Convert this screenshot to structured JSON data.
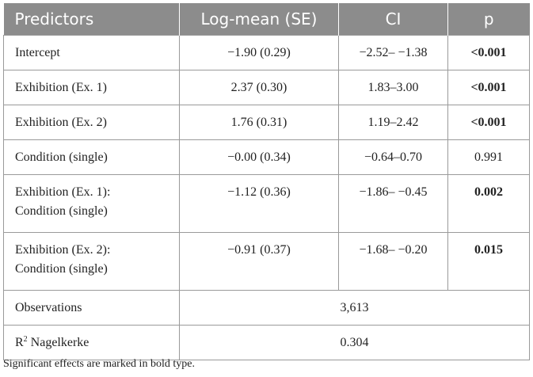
{
  "header": {
    "col1": "Predictors",
    "col2": "Log-mean (SE)",
    "col3": "CI",
    "col4": "p"
  },
  "rows": [
    {
      "pred_line1": "Intercept",
      "pred_line2": "",
      "logmean": "−1.90 (0.29)",
      "ci": "−2.52– −1.38",
      "p": "<0.001",
      "significant": true
    },
    {
      "pred_line1": "Exhibition (Ex. 1)",
      "pred_line2": "",
      "logmean": "2.37 (0.30)",
      "ci": "1.83–3.00",
      "p": "<0.001",
      "significant": true
    },
    {
      "pred_line1": "Exhibition (Ex. 2)",
      "pred_line2": "",
      "logmean": "1.76 (0.31)",
      "ci": "1.19–2.42",
      "p": "<0.001",
      "significant": true
    },
    {
      "pred_line1": "Condition (single)",
      "pred_line2": "",
      "logmean": "−0.00 (0.34)",
      "ci": "−0.64–0.70",
      "p": "0.991",
      "significant": false
    },
    {
      "pred_line1": "Exhibition (Ex. 1):",
      "pred_line2": "Condition (single)",
      "logmean": "−1.12 (0.36)",
      "ci": "−1.86– −0.45",
      "p": "0.002",
      "significant": true
    },
    {
      "pred_line1": "Exhibition (Ex. 2):",
      "pred_line2": "Condition (single)",
      "logmean": "−0.91 (0.37)",
      "ci": "−1.68– −0.20",
      "p": "0.015",
      "significant": true
    }
  ],
  "observations": {
    "label": "Observations",
    "value": "3,613"
  },
  "r2": {
    "label_r": "R",
    "label_sup": "2",
    "label_rest": " Nagelkerke",
    "value": "0.304"
  },
  "note": "Significant effects are marked in bold type."
}
